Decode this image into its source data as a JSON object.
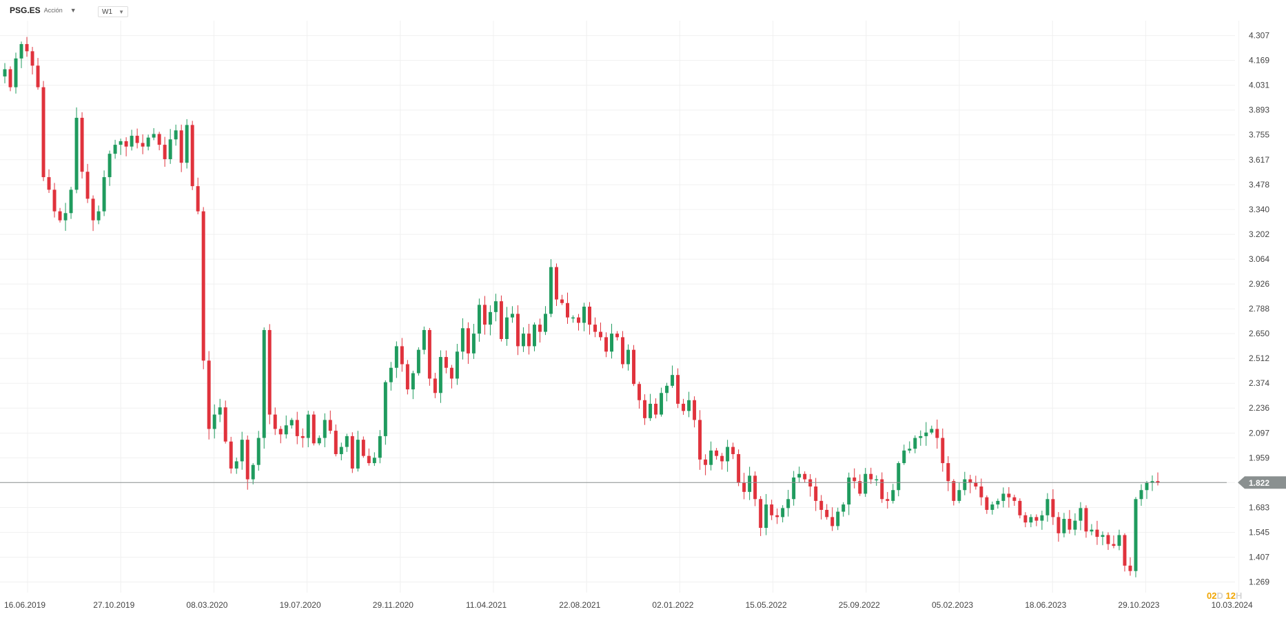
{
  "header": {
    "symbol": "PSG.ES",
    "asset_type": "Acción",
    "timeframe": "W1"
  },
  "countdown": {
    "days": "02",
    "days_unit": "D",
    "hours": "12",
    "hours_unit": "H"
  },
  "colors": {
    "up": "#1f9b5e",
    "down": "#e0323c",
    "grid": "#f0f0f0",
    "price_line": "#8a8f8f"
  },
  "chart_data": {
    "type": "candlestick",
    "interval": "weekly",
    "y_ticks": [
      "1.269",
      "1.407",
      "1.545",
      "1.683",
      "1.822",
      "1.959",
      "2.097",
      "2.236",
      "2.374",
      "2.512",
      "2.650",
      "2.788",
      "2.926",
      "3.064",
      "3.202",
      "3.340",
      "3.478",
      "3.617",
      "3.755",
      "3.893",
      "4.031",
      "4.169",
      "4.307"
    ],
    "ylim": [
      1.21,
      4.39
    ],
    "x_labels": [
      "16.06.2019",
      "27.10.2019",
      "08.03.2020",
      "19.07.2020",
      "29.11.2020",
      "11.04.2021",
      "22.08.2021",
      "02.01.2022",
      "15.05.2022",
      "25.09.2022",
      "05.02.2023",
      "18.06.2023",
      "29.10.2023",
      "10.03.2024"
    ],
    "last_price": "1.822",
    "last_price_value": 1.822,
    "grid": true,
    "path": [
      4.08,
      4.12,
      4.02,
      4.18,
      4.26,
      4.22,
      4.14,
      4.02,
      3.52,
      3.45,
      3.33,
      3.28,
      3.32,
      3.45,
      3.85,
      3.55,
      3.4,
      3.28,
      3.33,
      3.52,
      3.65,
      3.7,
      3.72,
      3.69,
      3.75,
      3.71,
      3.69,
      3.74,
      3.76,
      3.7,
      3.62,
      3.73,
      3.78,
      3.6,
      3.81,
      3.47,
      3.33,
      2.5,
      2.12,
      2.2,
      2.24,
      2.05,
      1.9,
      1.94,
      2.06,
      1.84,
      1.92,
      2.07,
      2.67,
      2.2,
      2.12,
      2.09,
      2.14,
      2.17,
      2.08,
      2.07,
      2.2,
      2.04,
      2.07,
      2.17,
      2.11,
      1.98,
      2.02,
      2.08,
      1.9,
      2.06,
      1.97,
      1.93,
      1.96,
      2.08,
      2.38,
      2.46,
      2.58,
      2.48,
      2.34,
      2.43,
      2.56,
      2.67,
      2.4,
      2.32,
      2.52,
      2.46,
      2.4,
      2.55,
      2.68,
      2.54,
      2.65,
      2.81,
      2.7,
      2.77,
      2.83,
      2.62,
      2.74,
      2.76,
      2.58,
      2.65,
      2.58,
      2.7,
      2.66,
      2.76,
      3.02,
      2.84,
      2.82,
      2.74,
      2.74,
      2.71,
      2.8,
      2.7,
      2.66,
      2.63,
      2.55,
      2.65,
      2.63,
      2.48,
      2.56,
      2.37,
      2.28,
      2.18,
      2.26,
      2.2,
      2.32,
      2.36,
      2.42,
      2.26,
      2.22,
      2.28,
      2.17,
      1.95,
      1.92,
      2.0,
      1.97,
      1.94,
      2.02,
      1.98,
      1.82,
      1.77,
      1.86,
      1.73,
      1.57,
      1.7,
      1.64,
      1.63,
      1.68,
      1.73,
      1.85,
      1.87,
      1.84,
      1.8,
      1.72,
      1.67,
      1.63,
      1.58,
      1.66,
      1.7,
      1.85,
      1.83,
      1.76,
      1.87,
      1.84,
      1.84,
      1.73,
      1.72,
      1.78,
      1.93,
      2.0,
      2.01,
      2.07,
      2.08,
      2.1,
      2.12,
      2.07,
      1.93,
      1.83,
      1.72,
      1.78,
      1.84,
      1.82,
      1.8,
      1.74,
      1.67,
      1.7,
      1.72,
      1.76,
      1.74,
      1.72,
      1.64,
      1.6,
      1.63,
      1.61,
      1.64,
      1.73,
      1.63,
      1.54,
      1.62,
      1.56,
      1.61,
      1.68,
      1.55,
      1.56,
      1.52,
      1.53,
      1.48,
      1.47,
      1.53,
      1.36,
      1.33,
      1.73,
      1.78,
      1.82,
      1.83,
      1.82
    ]
  }
}
